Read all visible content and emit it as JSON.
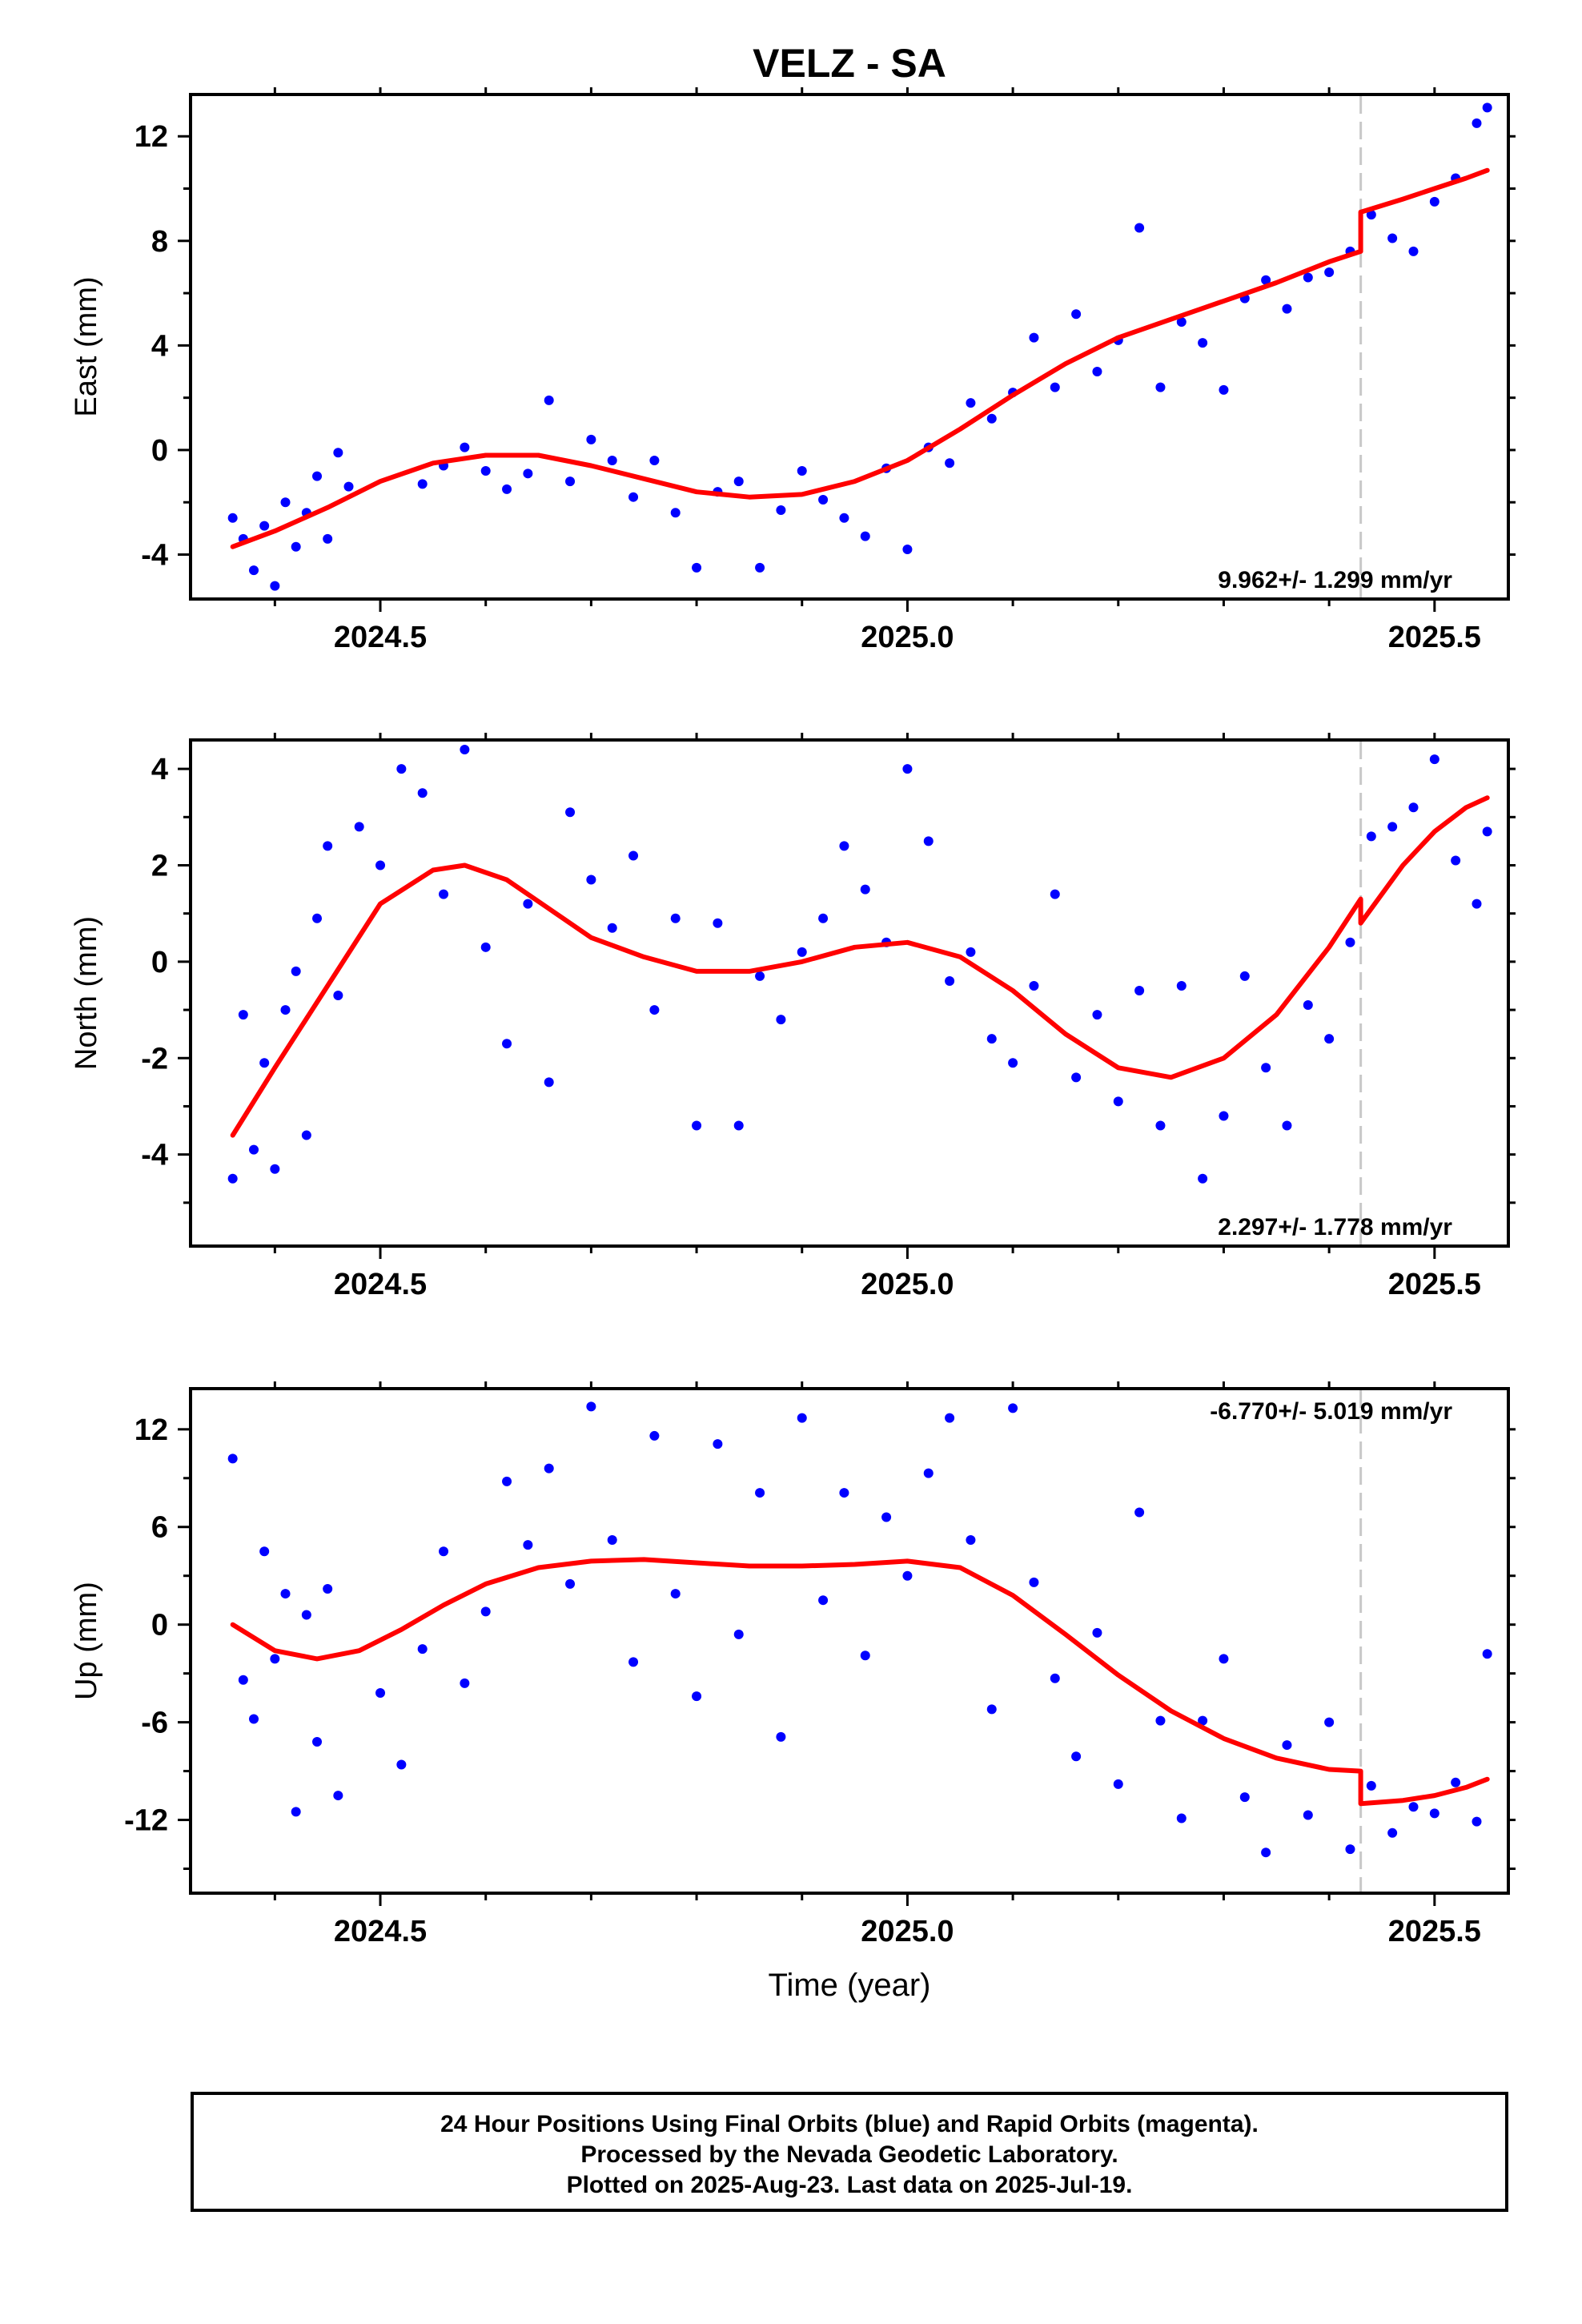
{
  "chart_data": [
    {
      "type": "scatter",
      "title": "VELZ - SA",
      "ylabel": "East (mm)",
      "xlabel": "",
      "xlim": [
        2024.32,
        2025.57
      ],
      "ylim": [
        -5.7,
        13.6
      ],
      "xticks": [
        "2024.5",
        "2025.0",
        "2025.5"
      ],
      "xtick_values": [
        2024.5,
        2025.0,
        2025.5
      ],
      "yticks": [
        "12",
        "8",
        "4",
        "0",
        "-4"
      ],
      "ytick_values": [
        12,
        8,
        4,
        0,
        -4
      ],
      "rate_label": "9.962+/- 1.299 mm/yr",
      "rate_position": "bottom-right",
      "step_epoch": 2025.43,
      "colors": {
        "points": "#0000ff",
        "model": "#ff0000",
        "step_line": "#c8c8c8"
      },
      "series": [
        {
          "kind": "points",
          "x": [
            2024.36,
            2024.37,
            2024.38,
            2024.39,
            2024.4,
            2024.41,
            2024.42,
            2024.43,
            2024.44,
            2024.45,
            2024.46,
            2024.47,
            2024.54,
            2024.56,
            2024.58,
            2024.6,
            2024.62,
            2024.64,
            2024.66,
            2024.68,
            2024.7,
            2024.72,
            2024.74,
            2024.76,
            2024.78,
            2024.8,
            2024.82,
            2024.84,
            2024.86,
            2024.88,
            2024.9,
            2024.92,
            2024.94,
            2024.96,
            2024.98,
            2025.0,
            2025.02,
            2025.04,
            2025.06,
            2025.08,
            2025.1,
            2025.12,
            2025.14,
            2025.16,
            2025.18,
            2025.2,
            2025.22,
            2025.24,
            2025.26,
            2025.28,
            2025.3,
            2025.32,
            2025.34,
            2025.36,
            2025.38,
            2025.4,
            2025.42,
            2025.44,
            2025.46,
            2025.48,
            2025.5,
            2025.52,
            2025.54,
            2025.55
          ],
          "y": [
            -2.6,
            -3.4,
            -4.6,
            -2.9,
            -5.2,
            -2.0,
            -3.7,
            -2.4,
            -1.0,
            -3.4,
            -0.1,
            -1.4,
            -1.3,
            -0.6,
            0.1,
            -0.8,
            -1.5,
            -0.9,
            1.9,
            -1.2,
            0.4,
            -0.4,
            -1.8,
            -0.4,
            -2.4,
            -4.5,
            -1.6,
            -1.2,
            -4.5,
            -2.3,
            -0.8,
            -1.9,
            -2.6,
            -3.3,
            -0.7,
            -3.8,
            0.1,
            -0.5,
            1.8,
            1.2,
            2.2,
            4.3,
            2.4,
            5.2,
            3.0,
            4.2,
            8.5,
            2.4,
            4.9,
            4.1,
            2.3,
            5.8,
            6.5,
            5.4,
            6.6,
            6.8,
            7.6,
            9.0,
            8.1,
            7.6,
            9.5,
            10.4,
            12.5,
            13.1
          ]
        },
        {
          "kind": "model",
          "x": [
            2024.36,
            2024.4,
            2024.45,
            2024.5,
            2024.55,
            2024.6,
            2024.65,
            2024.7,
            2024.75,
            2024.8,
            2024.85,
            2024.9,
            2024.95,
            2025.0,
            2025.05,
            2025.1,
            2025.15,
            2025.2,
            2025.25,
            2025.3,
            2025.35,
            2025.4,
            2025.43,
            2025.43,
            2025.47,
            2025.5,
            2025.53,
            2025.55
          ],
          "y": [
            -3.7,
            -3.1,
            -2.2,
            -1.2,
            -0.5,
            -0.2,
            -0.2,
            -0.6,
            -1.1,
            -1.6,
            -1.8,
            -1.7,
            -1.2,
            -0.4,
            0.8,
            2.1,
            3.3,
            4.3,
            5.0,
            5.7,
            6.4,
            7.2,
            7.6,
            9.1,
            9.6,
            10.0,
            10.4,
            10.7
          ]
        }
      ]
    },
    {
      "type": "scatter",
      "title": "",
      "ylabel": "North (mm)",
      "xlabel": "",
      "xlim": [
        2024.32,
        2025.57
      ],
      "ylim": [
        -5.9,
        4.6
      ],
      "xticks": [
        "2024.5",
        "2025.0",
        "2025.5"
      ],
      "xtick_values": [
        2024.5,
        2025.0,
        2025.5
      ],
      "yticks": [
        "4",
        "2",
        "0",
        "-2",
        "-4"
      ],
      "ytick_values": [
        4,
        2,
        0,
        -2,
        -4
      ],
      "rate_label": "2.297+/- 1.778 mm/yr",
      "rate_position": "bottom-right",
      "step_epoch": 2025.43,
      "colors": {
        "points": "#0000ff",
        "model": "#ff0000",
        "step_line": "#c8c8c8"
      },
      "series": [
        {
          "kind": "points",
          "x": [
            2024.36,
            2024.37,
            2024.38,
            2024.39,
            2024.4,
            2024.41,
            2024.42,
            2024.43,
            2024.44,
            2024.45,
            2024.46,
            2024.48,
            2024.5,
            2024.52,
            2024.54,
            2024.56,
            2024.58,
            2024.6,
            2024.62,
            2024.64,
            2024.66,
            2024.68,
            2024.7,
            2024.72,
            2024.74,
            2024.76,
            2024.78,
            2024.8,
            2024.82,
            2024.84,
            2024.86,
            2024.88,
            2024.9,
            2024.92,
            2024.94,
            2024.96,
            2024.98,
            2025.0,
            2025.02,
            2025.04,
            2025.06,
            2025.08,
            2025.1,
            2025.12,
            2025.14,
            2025.16,
            2025.18,
            2025.2,
            2025.22,
            2025.24,
            2025.26,
            2025.28,
            2025.3,
            2025.32,
            2025.34,
            2025.36,
            2025.38,
            2025.4,
            2025.42,
            2025.44,
            2025.46,
            2025.48,
            2025.5,
            2025.52,
            2025.54,
            2025.55
          ],
          "y": [
            -4.5,
            -1.1,
            -3.9,
            -2.1,
            -4.3,
            -1.0,
            -0.2,
            -3.6,
            0.9,
            2.4,
            -0.7,
            2.8,
            2.0,
            4.0,
            3.5,
            1.4,
            4.4,
            0.3,
            -1.7,
            1.2,
            -2.5,
            3.1,
            1.7,
            0.7,
            2.2,
            -1.0,
            0.9,
            -3.4,
            0.8,
            -3.4,
            -0.3,
            -1.2,
            0.2,
            0.9,
            2.4,
            1.5,
            0.4,
            4.0,
            2.5,
            -0.4,
            0.2,
            -1.6,
            -2.1,
            -0.5,
            1.4,
            -2.4,
            -1.1,
            -2.9,
            -0.6,
            -3.4,
            -0.5,
            -4.5,
            -3.2,
            -0.3,
            -2.2,
            -3.4,
            -0.9,
            -1.6,
            0.4,
            2.6,
            2.8,
            3.2,
            4.2,
            2.1,
            1.2,
            2.7
          ]
        },
        {
          "kind": "model",
          "x": [
            2024.36,
            2024.4,
            2024.45,
            2024.5,
            2024.55,
            2024.58,
            2024.62,
            2024.66,
            2024.7,
            2024.75,
            2024.8,
            2024.85,
            2024.9,
            2024.95,
            2025.0,
            2025.05,
            2025.1,
            2025.15,
            2025.2,
            2025.25,
            2025.3,
            2025.35,
            2025.4,
            2025.43,
            2025.43,
            2025.47,
            2025.5,
            2025.53,
            2025.55
          ],
          "y": [
            -3.6,
            -2.2,
            -0.5,
            1.2,
            1.9,
            2.0,
            1.7,
            1.1,
            0.5,
            0.1,
            -0.2,
            -0.2,
            0.0,
            0.3,
            0.4,
            0.1,
            -0.6,
            -1.5,
            -2.2,
            -2.4,
            -2.0,
            -1.1,
            0.3,
            1.3,
            0.8,
            2.0,
            2.7,
            3.2,
            3.4
          ]
        }
      ]
    },
    {
      "type": "scatter",
      "title": "",
      "ylabel": "Up (mm)",
      "xlabel": "Time (year)",
      "xlim": [
        2024.32,
        2025.57
      ],
      "ylim": [
        -16.5,
        14.5
      ],
      "xticks": [
        "2024.5",
        "2025.0",
        "2025.5"
      ],
      "xtick_values": [
        2024.5,
        2025.0,
        2025.5
      ],
      "yticks": [
        "12",
        "6",
        "0",
        "-6",
        "-12"
      ],
      "ytick_values": [
        12,
        6,
        0,
        -6,
        -12
      ],
      "rate_label": "-6.770+/- 5.019 mm/yr",
      "rate_position": "top-right",
      "step_epoch": 2025.43,
      "colors": {
        "points": "#0000ff",
        "model": "#ff0000",
        "step_line": "#c8c8c8"
      },
      "series": [
        {
          "kind": "points",
          "x": [
            2024.36,
            2024.37,
            2024.38,
            2024.39,
            2024.4,
            2024.41,
            2024.42,
            2024.43,
            2024.44,
            2024.45,
            2024.46,
            2024.5,
            2024.52,
            2024.54,
            2024.56,
            2024.58,
            2024.6,
            2024.62,
            2024.64,
            2024.66,
            2024.68,
            2024.7,
            2024.72,
            2024.74,
            2024.76,
            2024.78,
            2024.8,
            2024.82,
            2024.84,
            2024.86,
            2024.88,
            2024.9,
            2024.92,
            2024.94,
            2024.96,
            2024.98,
            2025.0,
            2025.02,
            2025.04,
            2025.06,
            2025.08,
            2025.1,
            2025.12,
            2025.14,
            2025.16,
            2025.18,
            2025.2,
            2025.22,
            2025.24,
            2025.26,
            2025.28,
            2025.3,
            2025.32,
            2025.34,
            2025.36,
            2025.38,
            2025.4,
            2025.42,
            2025.44,
            2025.46,
            2025.48,
            2025.5,
            2025.52,
            2025.54,
            2025.55
          ],
          "y": [
            10.2,
            -3.4,
            -5.8,
            4.5,
            -2.1,
            1.9,
            -11.5,
            0.6,
            -7.2,
            2.2,
            -10.5,
            -4.2,
            -8.6,
            -1.5,
            4.5,
            -3.6,
            0.8,
            8.8,
            4.9,
            9.6,
            2.5,
            13.4,
            5.2,
            -2.3,
            11.6,
            1.9,
            -4.4,
            11.1,
            -0.6,
            8.1,
            -6.9,
            12.7,
            1.5,
            8.1,
            -1.9,
            6.6,
            3.0,
            9.3,
            12.7,
            5.2,
            -5.2,
            13.3,
            2.6,
            -3.3,
            -8.1,
            -0.5,
            -9.8,
            6.9,
            -5.9,
            -11.9,
            -5.9,
            -2.1,
            -10.6,
            -14.0,
            -7.4,
            -11.7,
            -6.0,
            -13.8,
            -9.9,
            -12.8,
            -11.2,
            -11.6,
            -9.7,
            -12.1,
            -1.8
          ]
        },
        {
          "kind": "model",
          "x": [
            2024.36,
            2024.4,
            2024.44,
            2024.48,
            2024.52,
            2024.56,
            2024.6,
            2024.65,
            2024.7,
            2024.75,
            2024.8,
            2024.85,
            2024.9,
            2024.95,
            2025.0,
            2025.05,
            2025.1,
            2025.15,
            2025.2,
            2025.25,
            2025.3,
            2025.35,
            2025.4,
            2025.43,
            2025.43,
            2025.47,
            2025.5,
            2025.53,
            2025.55
          ],
          "y": [
            0.0,
            -1.6,
            -2.1,
            -1.6,
            -0.3,
            1.2,
            2.5,
            3.5,
            3.9,
            4.0,
            3.8,
            3.6,
            3.6,
            3.7,
            3.9,
            3.5,
            1.8,
            -0.6,
            -3.1,
            -5.3,
            -7.0,
            -8.2,
            -8.9,
            -9.0,
            -11.0,
            -10.8,
            -10.5,
            -10.0,
            -9.5
          ]
        }
      ]
    }
  ],
  "footer": {
    "line1": "24 Hour Positions Using Final Orbits (blue) and Rapid Orbits (magenta).",
    "line2": "Processed by the Nevada Geodetic Laboratory.",
    "line3": "Plotted on 2025-Aug-23. Last data on 2025-Jul-19."
  }
}
